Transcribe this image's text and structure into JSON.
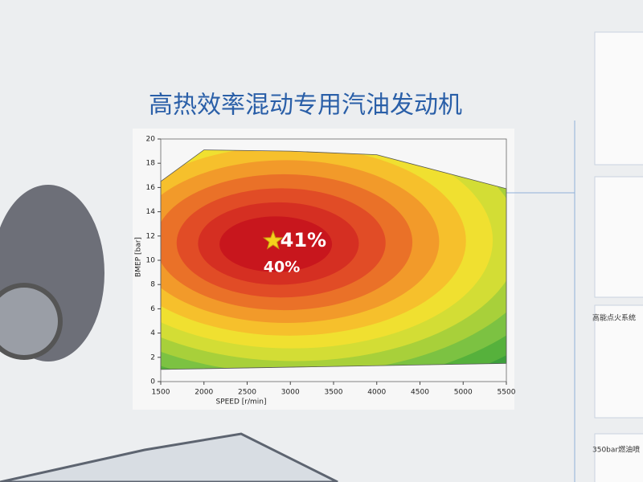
{
  "chart_data": {
    "type": "contour",
    "title": "高热效率混动专用汽油发动机",
    "x_label": "SPEED [r/min]",
    "y_label": "BMEP [bar]",
    "xlim": [
      1500,
      5500
    ],
    "xticks": [
      1500,
      2000,
      2500,
      3000,
      3500,
      4000,
      4500,
      5000,
      5500
    ],
    "ylim": [
      0,
      20
    ],
    "yticks": [
      0,
      2,
      4,
      6,
      8,
      10,
      12,
      14,
      16,
      18,
      20
    ],
    "envelope": {
      "x": [
        1500,
        2000,
        3000,
        4000,
        5500,
        5500,
        1500
      ],
      "y": [
        16.5,
        19.1,
        19,
        18.7,
        15.9,
        1.5,
        1
      ]
    },
    "peak": {
      "x": 2800,
      "y": 11.6
    },
    "annotations": [
      {
        "text": "41%",
        "x": 3150,
        "y": 11.6
      },
      {
        "text": "40%",
        "x": 2900,
        "y": 9.4
      }
    ],
    "side_labels": [
      "高能点火系统",
      "350bar燃油喷"
    ]
  },
  "title_color": "#2a5fa8"
}
